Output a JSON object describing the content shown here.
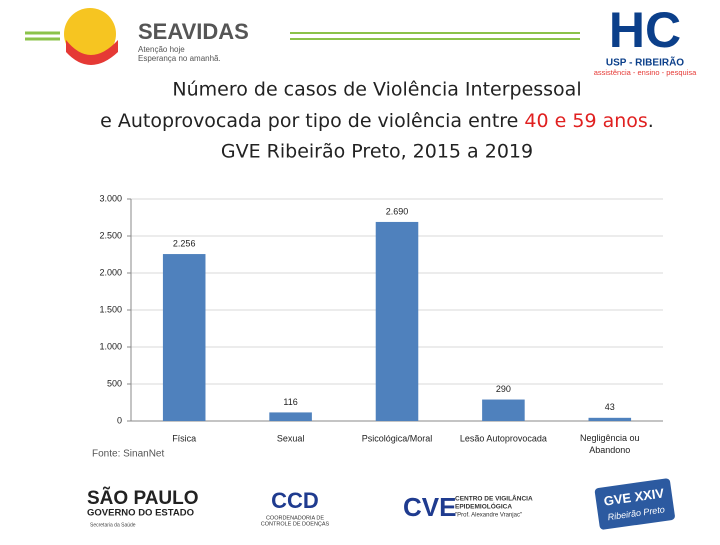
{
  "header": {
    "seavidas": "SEAVIDAS",
    "tagline_1": "Atenção hoje",
    "tagline_2": "Esperança no amanhã.",
    "hc": "HC",
    "usp": "USP - RIBEIRÃO",
    "usp_tagline": "assistência - ensino - pesquisa"
  },
  "chart_data": {
    "type": "bar",
    "title": [
      "Número de casos de Violência Interpessoal",
      "e Autoprovocada por tipo de violência entre ",
      "40 e 59 anos",
      ".",
      "GVE Ribeirão Preto, 2015 a 2019"
    ],
    "title_highlight_color": "#e02020",
    "categories": [
      "Física",
      "Sexual",
      "Psicológica/Moral",
      "Lesão Autoprovocada",
      "Negligência ou\nAbandono"
    ],
    "values": [
      2256,
      116,
      2690,
      290,
      43
    ],
    "value_labels": [
      "2.256",
      "116",
      "2.690",
      "290",
      "43"
    ],
    "color": "#4f81bd",
    "ylim": [
      0,
      3000
    ],
    "yticks": [
      0,
      500,
      {
        "value": 1000,
        "label": "1.000"
      },
      {
        "value": 1500,
        "label": "1.500"
      },
      {
        "value": 2000,
        "label": "2.000"
      },
      {
        "value": 2500,
        "label": "2.500"
      },
      {
        "value": 3000,
        "label": "3.000"
      }
    ],
    "grid": true,
    "source": "Fonte: SinanNet"
  },
  "footer": {
    "sp_1": "SÃO PAULO",
    "sp_2": "GOVERNO DO ESTADO",
    "sp_3": "Secretaria da Saúde",
    "ccd": "CCD",
    "ccd_1": "COORDENADORIA DE",
    "ccd_2": "CONTROLE DE DOENÇAS",
    "cve": "CVE",
    "cve_1": "CENTRO DE VIGILÂNCIA",
    "cve_2": "EPIDEMIOLÓGICA",
    "cve_3": "\"Prof. Alexandre Vranjac\"",
    "gve_1": "GVE XXIV",
    "gve_2": "Ribeirão Preto"
  }
}
